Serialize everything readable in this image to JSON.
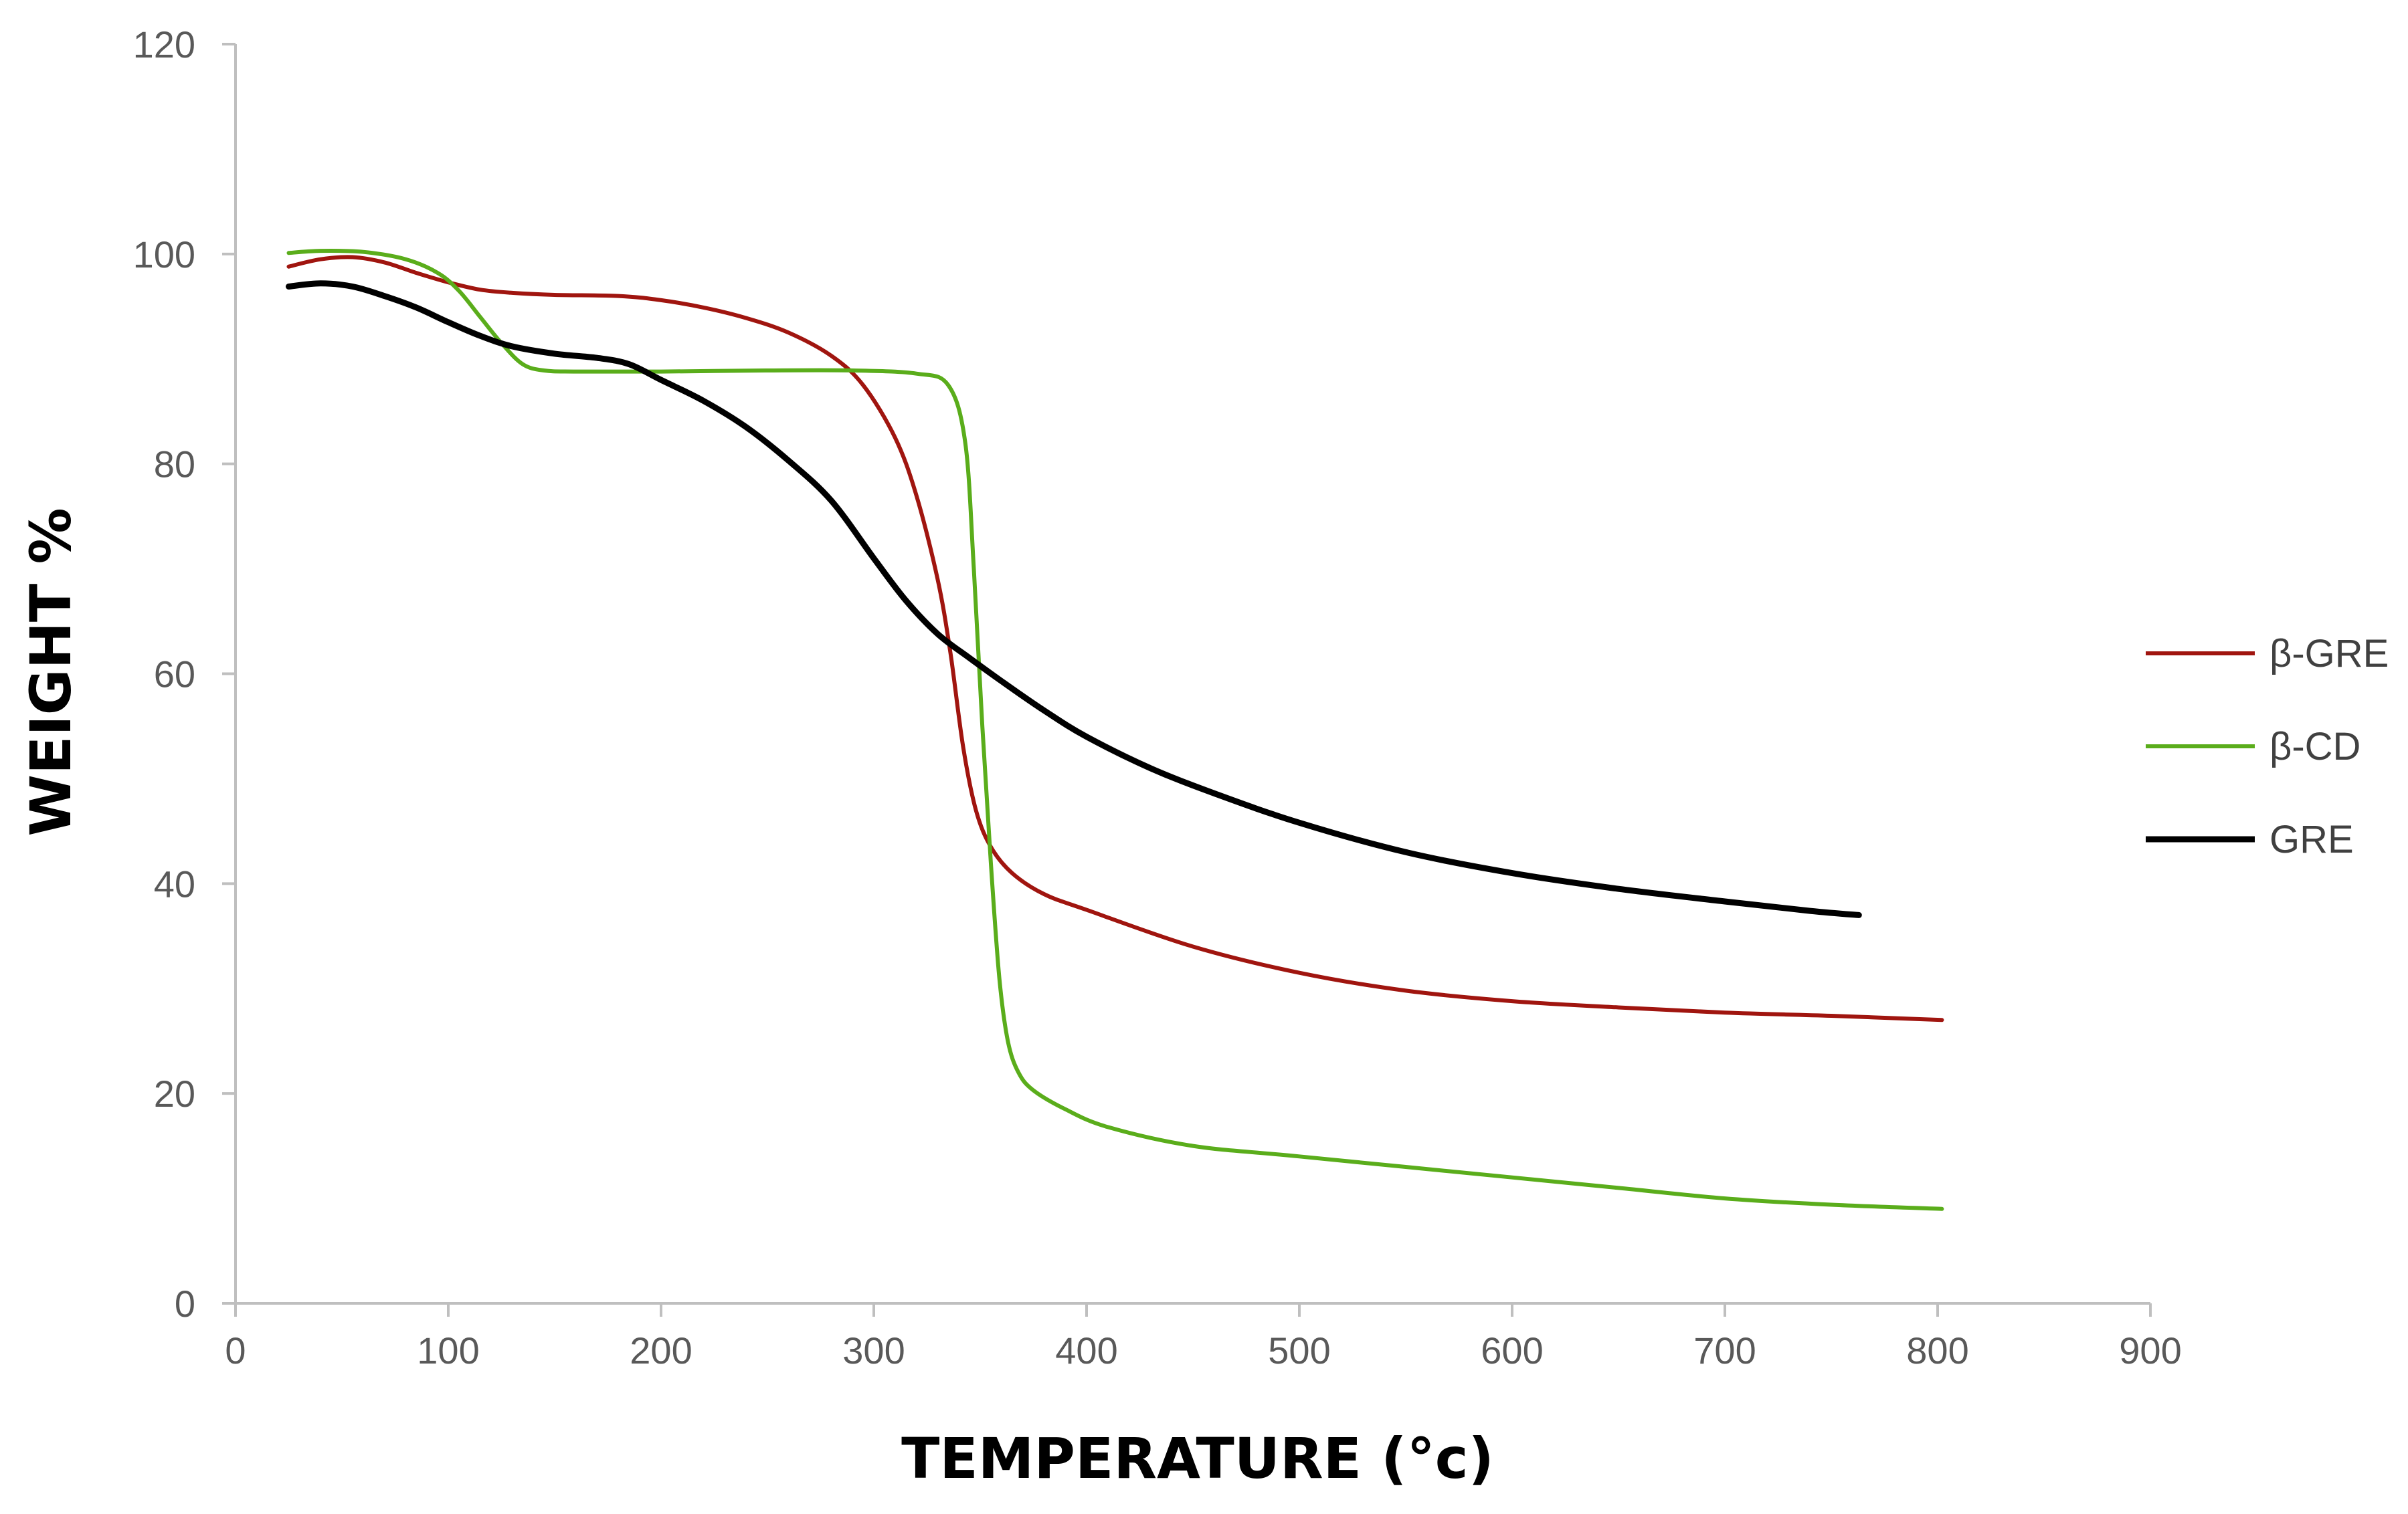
{
  "chart_data": {
    "type": "line",
    "title": "",
    "xlabel": "TEMPERATURE (°c)",
    "ylabel": "WEIGHT %",
    "xlim": [
      0,
      900
    ],
    "ylim": [
      0,
      120
    ],
    "x_ticks": [
      0,
      100,
      200,
      300,
      400,
      500,
      600,
      700,
      800,
      900
    ],
    "y_ticks": [
      0,
      20,
      40,
      60,
      80,
      100,
      120
    ],
    "grid": false,
    "legend_position": "right",
    "series": [
      {
        "name": "β-GRE",
        "color": "#a0150f",
        "points": [
          [
            25,
            98.8
          ],
          [
            40,
            99.5
          ],
          [
            55,
            99.7
          ],
          [
            70,
            99.2
          ],
          [
            85,
            98.2
          ],
          [
            100,
            97.3
          ],
          [
            115,
            96.6
          ],
          [
            130,
            96.3
          ],
          [
            150,
            96.1
          ],
          [
            180,
            96.0
          ],
          [
            200,
            95.6
          ],
          [
            220,
            94.9
          ],
          [
            240,
            93.9
          ],
          [
            260,
            92.5
          ],
          [
            280,
            90.3
          ],
          [
            295,
            87.5
          ],
          [
            310,
            82.5
          ],
          [
            320,
            77
          ],
          [
            330,
            69
          ],
          [
            336,
            62
          ],
          [
            342,
            53
          ],
          [
            348,
            47
          ],
          [
            355,
            43.5
          ],
          [
            365,
            41
          ],
          [
            380,
            39
          ],
          [
            400,
            37.5
          ],
          [
            450,
            34
          ],
          [
            500,
            31.5
          ],
          [
            550,
            29.8
          ],
          [
            600,
            28.8
          ],
          [
            650,
            28.2
          ],
          [
            700,
            27.7
          ],
          [
            750,
            27.4
          ],
          [
            802,
            27
          ]
        ]
      },
      {
        "name": "β-CD",
        "color": "#5aad1b",
        "points": [
          [
            25,
            100.1
          ],
          [
            40,
            100.3
          ],
          [
            60,
            100.2
          ],
          [
            80,
            99.5
          ],
          [
            95,
            98.2
          ],
          [
            105,
            96.5
          ],
          [
            115,
            94
          ],
          [
            125,
            91.5
          ],
          [
            135,
            89.5
          ],
          [
            145,
            88.9
          ],
          [
            160,
            88.8
          ],
          [
            200,
            88.8
          ],
          [
            250,
            88.9
          ],
          [
            290,
            88.9
          ],
          [
            320,
            88.6
          ],
          [
            335,
            87.5
          ],
          [
            343,
            82
          ],
          [
            347,
            70
          ],
          [
            351,
            55
          ],
          [
            355,
            42
          ],
          [
            359,
            31
          ],
          [
            363,
            25
          ],
          [
            368,
            22
          ],
          [
            375,
            20.3
          ],
          [
            390,
            18.5
          ],
          [
            410,
            16.8
          ],
          [
            450,
            15
          ],
          [
            500,
            14
          ],
          [
            600,
            12
          ],
          [
            650,
            11
          ],
          [
            700,
            10
          ],
          [
            750,
            9.4
          ],
          [
            802,
            9
          ]
        ]
      },
      {
        "name": "GRE",
        "color": "#000000",
        "points": [
          [
            25,
            96.9
          ],
          [
            40,
            97.2
          ],
          [
            55,
            96.9
          ],
          [
            70,
            96
          ],
          [
            85,
            94.9
          ],
          [
            100,
            93.5
          ],
          [
            115,
            92.2
          ],
          [
            130,
            91.2
          ],
          [
            150,
            90.5
          ],
          [
            170,
            90.1
          ],
          [
            185,
            89.5
          ],
          [
            200,
            88
          ],
          [
            220,
            86
          ],
          [
            240,
            83.5
          ],
          [
            260,
            80.3
          ],
          [
            280,
            76.5
          ],
          [
            300,
            71
          ],
          [
            315,
            67
          ],
          [
            330,
            63.8
          ],
          [
            345,
            61.5
          ],
          [
            360,
            59.3
          ],
          [
            380,
            56.5
          ],
          [
            400,
            54
          ],
          [
            430,
            51
          ],
          [
            460,
            48.6
          ],
          [
            500,
            45.8
          ],
          [
            550,
            43
          ],
          [
            600,
            41
          ],
          [
            650,
            39.5
          ],
          [
            700,
            38.3
          ],
          [
            740,
            37.4
          ],
          [
            763,
            37
          ]
        ]
      }
    ]
  }
}
